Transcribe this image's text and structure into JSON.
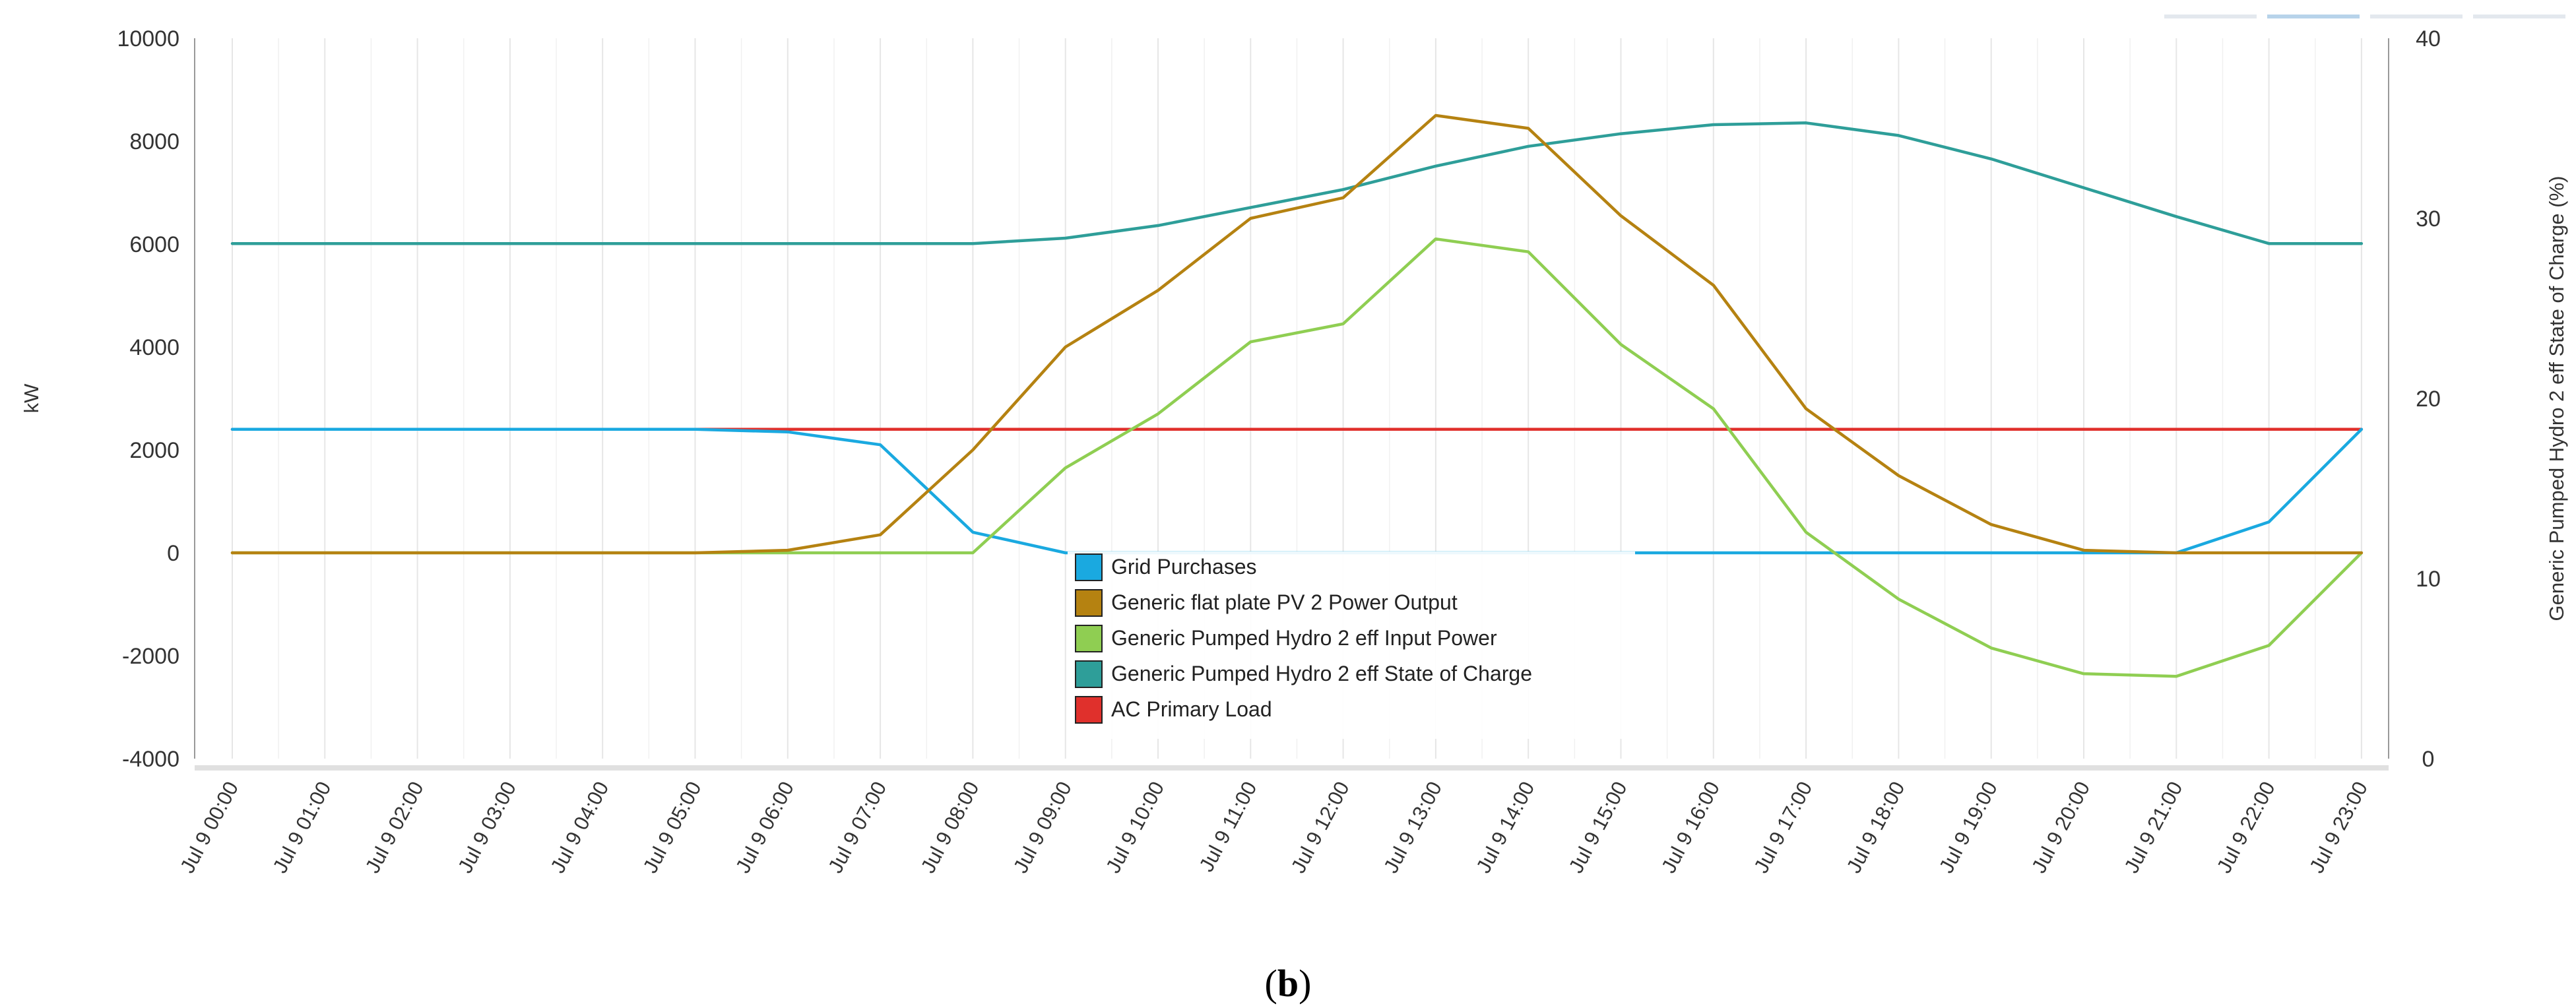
{
  "chart_data": {
    "type": "line",
    "caption_open": "(",
    "caption_letter": "b",
    "caption_close": ")",
    "ylabel": "kW",
    "y2label": "Generic Pumped Hydro 2 eff State of Charge (%)",
    "ylim": [
      -4000,
      10000
    ],
    "y2lim": [
      0,
      40
    ],
    "yticks": [
      "10000",
      "8000",
      "6000",
      "4000",
      "2000",
      "0",
      "-2000",
      "-4000"
    ],
    "y2ticks": [
      "40",
      "30",
      "20",
      "10",
      "0"
    ],
    "categories": [
      "Jul 9 00:00",
      "Jul 9 01:00",
      "Jul 9 02:00",
      "Jul 9 03:00",
      "Jul 9 04:00",
      "Jul 9 05:00",
      "Jul 9 06:00",
      "Jul 9 07:00",
      "Jul 9 08:00",
      "Jul 9 09:00",
      "Jul 9 10:00",
      "Jul 9 11:00",
      "Jul 9 12:00",
      "Jul 9 13:00",
      "Jul 9 14:00",
      "Jul 9 15:00",
      "Jul 9 16:00",
      "Jul 9 17:00",
      "Jul 9 18:00",
      "Jul 9 19:00",
      "Jul 9 20:00",
      "Jul 9 21:00",
      "Jul 9 22:00",
      "Jul 9 23:00"
    ],
    "series": [
      {
        "name": "Grid Purchases",
        "color": "#1aa9e0",
        "axis": "left",
        "values": [
          2400,
          2400,
          2400,
          2400,
          2400,
          2400,
          2350,
          2100,
          400,
          0,
          0,
          0,
          0,
          0,
          0,
          0,
          0,
          0,
          0,
          0,
          0,
          0,
          600,
          2400
        ]
      },
      {
        "name": "Generic flat plate PV 2 Power Output",
        "color": "#b58211",
        "axis": "left",
        "values": [
          0,
          0,
          0,
          0,
          0,
          0,
          50,
          350,
          2000,
          4000,
          5100,
          6500,
          6900,
          8500,
          8250,
          6550,
          5200,
          2800,
          1500,
          550,
          50,
          0,
          0,
          0
        ]
      },
      {
        "name": "Generic Pumped Hydro 2 eff Input Power",
        "color": "#8fce52",
        "axis": "left",
        "values": [
          0,
          0,
          0,
          0,
          0,
          0,
          0,
          0,
          0,
          1650,
          2700,
          4100,
          4450,
          6100,
          5850,
          4050,
          2800,
          400,
          -900,
          -1850,
          -2350,
          -2400,
          -1800,
          0
        ]
      },
      {
        "name": "Generic Pumped Hydro 2 eff State of Charge",
        "color": "#2e9e99",
        "axis": "right",
        "values": [
          28.6,
          28.6,
          28.6,
          28.6,
          28.6,
          28.6,
          28.6,
          28.6,
          28.6,
          28.9,
          29.6,
          30.6,
          31.6,
          32.9,
          34.0,
          34.7,
          35.2,
          35.3,
          34.6,
          33.3,
          31.7,
          30.1,
          28.6,
          28.6
        ]
      },
      {
        "name": "AC Primary Load",
        "color": "#e0302c",
        "axis": "left",
        "values": [
          2400,
          2400,
          2400,
          2400,
          2400,
          2400,
          2400,
          2400,
          2400,
          2400,
          2400,
          2400,
          2400,
          2400,
          2400,
          2400,
          2400,
          2400,
          2400,
          2400,
          2400,
          2400,
          2400,
          2400
        ]
      }
    ],
    "legend": {
      "position": "bottom-center",
      "items": [
        {
          "label": "Grid Purchases",
          "color": "#1aa9e0"
        },
        {
          "label": "Generic flat plate PV 2 Power Output",
          "color": "#b58211"
        },
        {
          "label": "Generic Pumped Hydro 2 eff Input Power",
          "color": "#8fce52"
        },
        {
          "label": "Generic Pumped Hydro 2 eff State of Charge",
          "color": "#2e9e99"
        },
        {
          "label": "AC Primary Load",
          "color": "#e0302c"
        }
      ]
    },
    "grid": true
  }
}
